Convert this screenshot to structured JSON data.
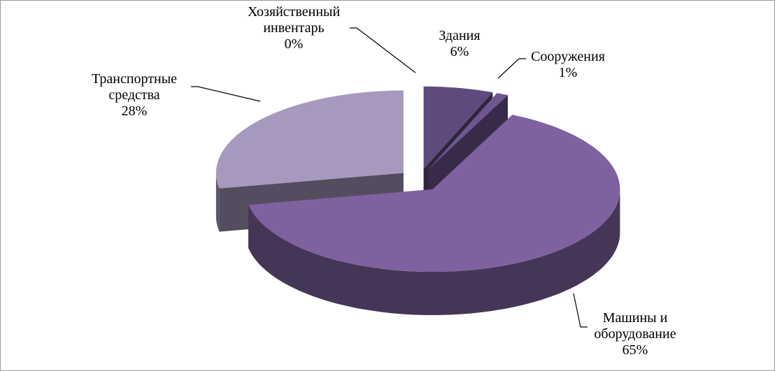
{
  "chart_data": {
    "type": "pie3d",
    "categories": [
      "Здания",
      "Сооружения",
      "Машины и оборудование",
      "Транспортные средства",
      "Хозяйственный инвентарь"
    ],
    "values": [
      6,
      1,
      65,
      28,
      0
    ],
    "value_labels": [
      "6%",
      "1%",
      "65%",
      "28%",
      "0%"
    ],
    "colors": [
      "#5e4a7c",
      "#6f5692",
      "#7e62a0",
      "#a799be",
      "#c8bfd8"
    ]
  }
}
